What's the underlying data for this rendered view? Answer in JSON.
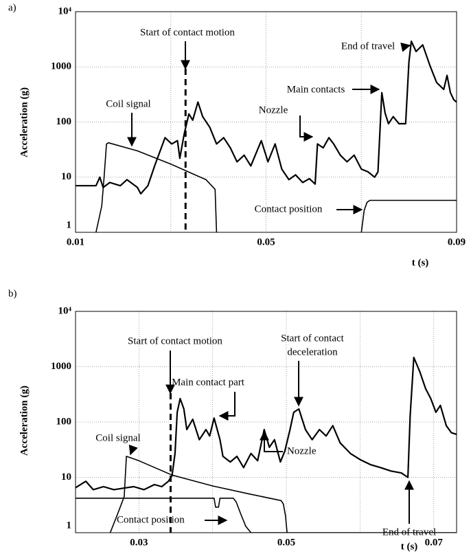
{
  "chart_data": [
    {
      "type": "line",
      "panel_label": "a)",
      "y_label": "Acceleration (g)",
      "x_label": "t (s)",
      "log_y": true,
      "grid": true,
      "xlim": [
        0.01,
        0.09
      ],
      "xticks": [
        0.01,
        0.05,
        0.09
      ],
      "xgrid": [
        0.03,
        0.07
      ],
      "ylim": [
        1,
        10000
      ],
      "yticks": [
        1,
        10,
        100,
        1000,
        {
          "value": 10000,
          "label": "10⁴"
        }
      ],
      "marker_x": 0.0331,
      "series": [
        {
          "color": "#000000",
          "x": [
            0.01,
            0.0143,
            0.0151,
            0.0158,
            0.0172,
            0.0194,
            0.0208,
            0.023,
            0.0237,
            0.0252,
            0.0266,
            0.0288,
            0.0302,
            0.0314,
            0.0319,
            0.0328,
            0.0338,
            0.0346,
            0.0357,
            0.0367,
            0.0382,
            0.0396,
            0.0411,
            0.0425,
            0.0439,
            0.0454,
            0.0468,
            0.049,
            0.0504,
            0.0519,
            0.0533,
            0.0548,
            0.0562,
            0.0577,
            0.0591,
            0.0603,
            0.0608,
            0.062,
            0.0632,
            0.0642,
            0.0656,
            0.067,
            0.0685,
            0.07,
            0.0714,
            0.0728,
            0.0735,
            0.0743,
            0.075,
            0.0757,
            0.0767,
            0.0779,
            0.0793,
            0.08,
            0.0805,
            0.0815,
            0.0829,
            0.0844,
            0.0858,
            0.0873,
            0.088,
            0.0887,
            0.0894,
            0.09
          ],
          "values": [
            7,
            7,
            10,
            6.5,
            8,
            7,
            9,
            6.5,
            5,
            7,
            16,
            52,
            40,
            46,
            22,
            60,
            140,
            108,
            230,
            125,
            80,
            40,
            52,
            34,
            19,
            25,
            16,
            46,
            19,
            40,
            14,
            9,
            11,
            8,
            9.4,
            7.5,
            40,
            34,
            52,
            40,
            25,
            19,
            25,
            14,
            12.5,
            10,
            12.5,
            340,
            145,
            93,
            125,
            93,
            93,
            1230,
            2900,
            1900,
            2500,
            1060,
            520,
            390,
            700,
            340,
            255,
            230
          ]
        },
        {
          "name": "Coil signal",
          "color": "#000000",
          "x": [
            0.0143,
            0.0155,
            0.016,
            0.0165,
            0.0169,
            0.023,
            0.0302,
            0.0346,
            0.0374,
            0.0393,
            0.0396
          ],
          "values": [
            1,
            3,
            10,
            40,
            42,
            30,
            17,
            11.5,
            9,
            6,
            1
          ]
        },
        {
          "name": "Contact position",
          "color": "#000000",
          "x": [
            0.07,
            0.0706,
            0.0712,
            0.0718,
            0.09
          ],
          "values": [
            1,
            2.5,
            3.5,
            3.8,
            3.8
          ]
        }
      ],
      "annotations": [
        [
          "Start of contact motion"
        ],
        [
          "Coil signal"
        ],
        [
          "Nozzle"
        ],
        [
          "Main contacts"
        ],
        [
          "End of travel"
        ],
        [
          "Contact position"
        ]
      ]
    },
    {
      "type": "line",
      "panel_label": "b)",
      "y_label": "Acceleration (g)",
      "x_label": "t (s)",
      "log_y": true,
      "grid": true,
      "xlim": [
        0.0214,
        0.0731
      ],
      "xticks": [
        0.03,
        0.05,
        0.07
      ],
      "xgrid": [
        0.04,
        0.06
      ],
      "ylim": [
        1,
        10000
      ],
      "yticks": [
        1,
        10,
        100,
        1000,
        {
          "value": 10000,
          "label": "10⁴"
        }
      ],
      "marker_x": 0.0343,
      "series": [
        {
          "color": "#000000",
          "x": [
            0.0214,
            0.0228,
            0.0238,
            0.0252,
            0.0266,
            0.028,
            0.0293,
            0.0307,
            0.0321,
            0.0331,
            0.034,
            0.0345,
            0.0349,
            0.0352,
            0.0356,
            0.0361,
            0.0365,
            0.0373,
            0.0382,
            0.0391,
            0.0396,
            0.0402,
            0.041,
            0.0414,
            0.0424,
            0.0433,
            0.0442,
            0.0452,
            0.0461,
            0.047,
            0.0477,
            0.0484,
            0.0492,
            0.0498,
            0.0505,
            0.051,
            0.0517,
            0.0526,
            0.0535,
            0.0545,
            0.0554,
            0.0563,
            0.0573,
            0.0587,
            0.06,
            0.0614,
            0.0628,
            0.0642,
            0.0656,
            0.0665,
            0.0668,
            0.0673,
            0.0681,
            0.0689,
            0.0696,
            0.0703,
            0.0709,
            0.0717,
            0.0724,
            0.0731
          ],
          "values": [
            6.5,
            8.5,
            6,
            6.8,
            6,
            6.4,
            6.8,
            6,
            7.4,
            6.8,
            8.5,
            10.8,
            27,
            150,
            265,
            172,
            73,
            112,
            48,
            73,
            56,
            118,
            48,
            24,
            19,
            24,
            15,
            27,
            20,
            73,
            35,
            48,
            19,
            30,
            73,
            150,
            172,
            73,
            48,
            73,
            56,
            86,
            42,
            27,
            21,
            17,
            15,
            13,
            12,
            10,
            130,
            1470,
            820,
            400,
            265,
            150,
            200,
            86,
            64,
            60
          ]
        },
        {
          "name": "Coil signal",
          "color": "#000000",
          "x": [
            0.0261,
            0.027,
            0.0278,
            0.028,
            0.0283,
            0.03,
            0.0345,
            0.04,
            0.045,
            0.0493,
            0.0496,
            0.0499,
            0.0501
          ],
          "values": [
            1,
            2,
            3.8,
            4.5,
            24,
            20,
            11,
            7,
            5,
            3.8,
            3.3,
            2,
            1
          ]
        },
        {
          "name": "Contact position",
          "color": "#000000",
          "x": [
            0.0214,
            0.0402,
            0.0404,
            0.0408,
            0.041,
            0.0428,
            0.0432,
            0.0438,
            0.0445,
            0.0452,
            0.0731
          ],
          "values": [
            4.2,
            4.2,
            2.9,
            2.9,
            4.2,
            4.2,
            3.6,
            2.2,
            1.3,
            1,
            1
          ]
        }
      ],
      "annotations": [
        [
          "Start of contact motion"
        ],
        [
          "Coil signal"
        ],
        [
          "Main contact part"
        ],
        [
          "Nozzle"
        ],
        [
          "Start of contact",
          "deceleration"
        ],
        [
          "Contact position"
        ],
        [
          "End of travel"
        ]
      ]
    }
  ]
}
